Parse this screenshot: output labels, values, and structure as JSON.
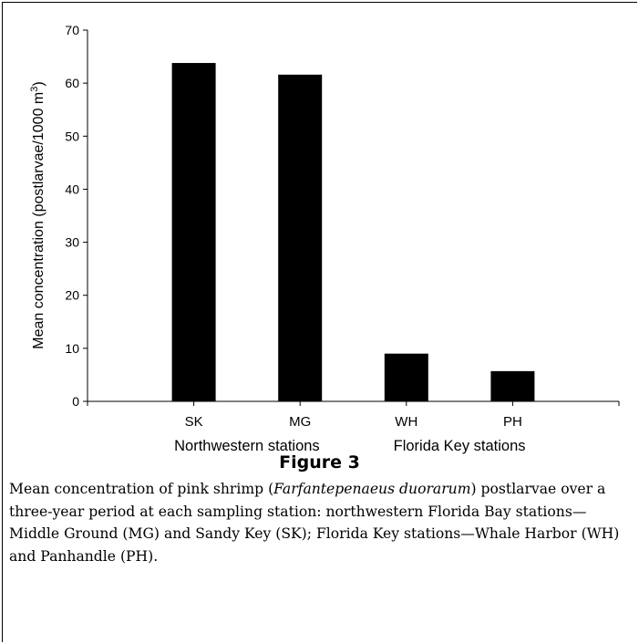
{
  "chart_data": {
    "type": "bar",
    "categories": [
      "SK",
      "MG",
      "WH",
      "PH"
    ],
    "values": [
      63.8,
      61.6,
      9.0,
      5.7
    ],
    "ylabel_main": "Mean concentration (postlarvae/1000 m",
    "ylabel_sup": "3",
    "ylabel_end": ")",
    "ylim": [
      0,
      70
    ],
    "yticks": [
      0,
      10,
      20,
      30,
      40,
      50,
      60,
      70
    ],
    "groups": [
      {
        "label": "Northwestern stations",
        "categories": [
          "SK",
          "MG"
        ]
      },
      {
        "label": "Florida Key stations",
        "categories": [
          "WH",
          "PH"
        ]
      }
    ],
    "bar_color": "#000000",
    "grid": false,
    "legend": "none"
  },
  "figure": {
    "label": "Figure 3",
    "caption_part1": "Mean concentration of pink shrimp (",
    "caption_species": "Farfantepenaeus duorarum",
    "caption_part2": ") postlarvae over a three-year period at each sampling station: northwestern Florida Bay stations—Middle Ground (MG) and Sandy Key (SK); Florida Key stations—Whale Harbor (WH) and Panhandle (PH)."
  }
}
